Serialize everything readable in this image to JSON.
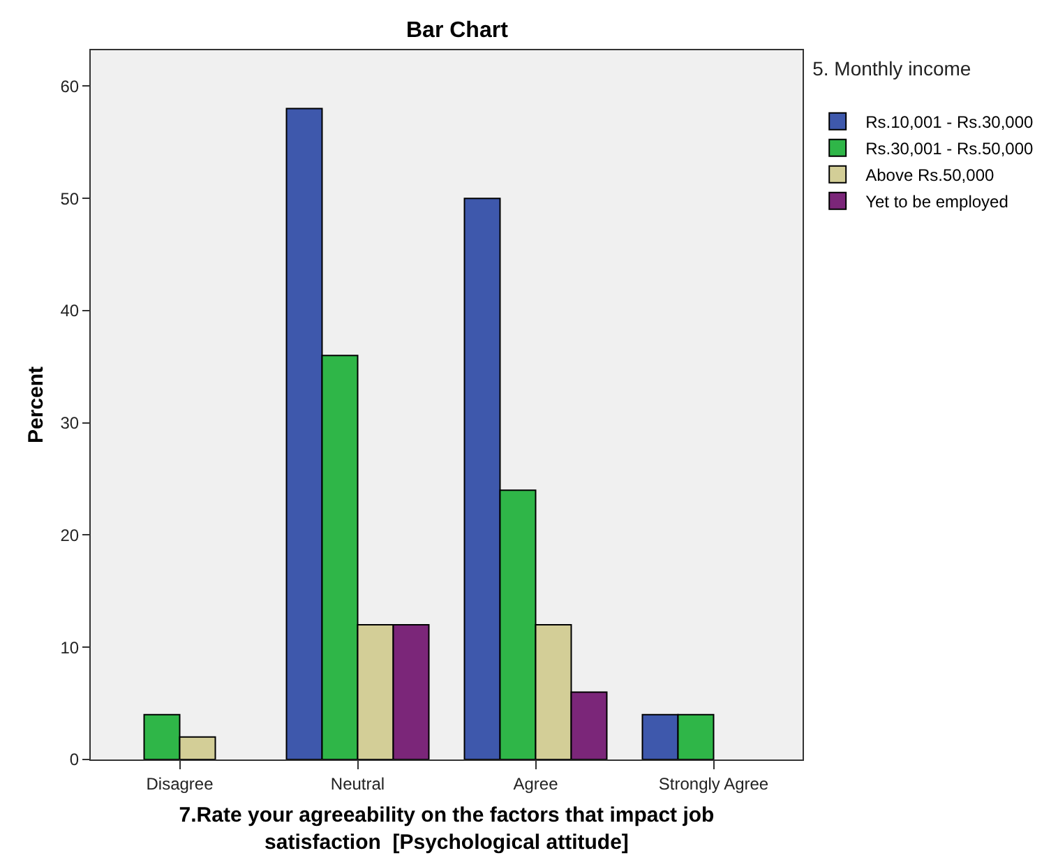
{
  "chart_data": {
    "type": "bar",
    "title": "Bar Chart",
    "xlabel": "7.Rate your agreeability on the factors that impact job satisfaction  [Psychological attitude]",
    "ylabel": "Percent",
    "legend_title": "5. Monthly income",
    "categories": [
      "Disagree",
      "Neutral",
      "Agree",
      "Strongly Agree"
    ],
    "series": [
      {
        "name": "Rs.10,001 - Rs.30,000",
        "color": "#3e58ac",
        "values": [
          null,
          58,
          50,
          4
        ]
      },
      {
        "name": "Rs.30,001 - Rs.50,000",
        "color": "#2fb648",
        "values": [
          4,
          36,
          24,
          4
        ]
      },
      {
        "name": "Above Rs.50,000",
        "color": "#d3ce97",
        "values": [
          2,
          12,
          12,
          null
        ]
      },
      {
        "name": "Yet to be employed",
        "color": "#7b2679",
        "values": [
          null,
          12,
          6,
          null
        ]
      }
    ],
    "ylim": [
      0,
      63.2
    ],
    "yticks": [
      0,
      10,
      20,
      30,
      40,
      50,
      60
    ],
    "grid": false,
    "legend": "top right"
  }
}
